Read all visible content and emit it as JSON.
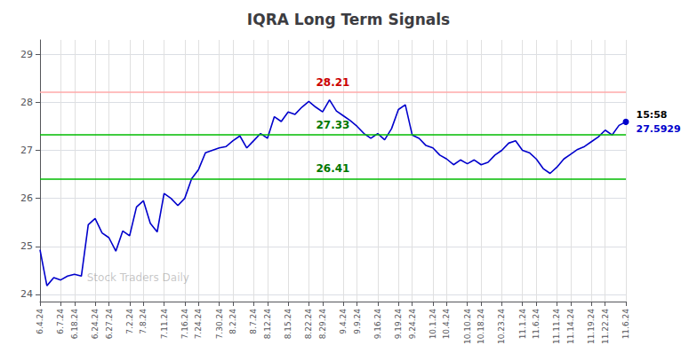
{
  "chart_data": {
    "type": "line",
    "title": "IQRA Long Term Signals",
    "categories": [
      "6.4.24",
      null,
      null,
      "6.7.24",
      null,
      "6.18.24",
      null,
      null,
      "6.24.24",
      null,
      "6.27.24",
      null,
      null,
      "7.2.24",
      null,
      "7.8.24",
      null,
      null,
      "7.11.24",
      null,
      null,
      "7.16.24",
      null,
      "7.24.24",
      null,
      null,
      "7.30.24",
      null,
      "8.2.24",
      null,
      null,
      "8.7.24",
      null,
      "8.12.24",
      null,
      null,
      "8.15.24",
      null,
      null,
      "8.22.24",
      null,
      "8.29.24",
      null,
      null,
      "9.4.24",
      null,
      "9.9.24",
      null,
      null,
      "9.16.24",
      null,
      null,
      "9.19.24",
      null,
      "9.24.24",
      null,
      null,
      "10.1.24",
      null,
      "10.4.24",
      null,
      null,
      "10.10.24",
      null,
      "10.18.24",
      null,
      null,
      "10.23.24",
      null,
      null,
      "11.1.24",
      null,
      "11.6.24",
      null,
      null,
      "11.11.24",
      null,
      "11.14.24",
      null,
      null,
      "11.19.24",
      null,
      "11.22.24",
      null,
      null,
      "11.6.24"
    ],
    "values": [
      24.93,
      24.18,
      24.35,
      24.3,
      24.38,
      24.42,
      24.38,
      25.45,
      25.58,
      25.28,
      25.18,
      24.9,
      25.32,
      25.22,
      25.82,
      25.95,
      25.48,
      25.3,
      26.1,
      26.0,
      25.85,
      26.0,
      26.41,
      26.6,
      26.95,
      27.0,
      27.05,
      27.08,
      27.2,
      27.3,
      27.05,
      27.2,
      27.35,
      27.25,
      27.7,
      27.6,
      27.8,
      27.75,
      27.9,
      28.02,
      27.9,
      27.8,
      28.05,
      27.82,
      27.72,
      27.62,
      27.5,
      27.35,
      27.25,
      27.35,
      27.22,
      27.45,
      27.85,
      27.95,
      27.32,
      27.25,
      27.1,
      27.05,
      26.9,
      26.82,
      26.7,
      26.8,
      26.72,
      26.8,
      26.7,
      26.75,
      26.9,
      27.0,
      27.15,
      27.2,
      27.0,
      26.95,
      26.82,
      26.62,
      26.52,
      26.65,
      26.82,
      26.92,
      27.02,
      27.08,
      27.18,
      27.28,
      27.42,
      27.32,
      27.52,
      27.5929
    ],
    "color": "#0000cc",
    "ylim": [
      23.85,
      29.3
    ],
    "yticks": [
      24,
      25,
      26,
      27,
      28,
      29
    ],
    "grid": true,
    "annotations": [
      {
        "text": "28.21",
        "y": 28.21,
        "color": "#cc0000",
        "line_color": "#ffaaaa"
      },
      {
        "text": "27.33",
        "y": 27.33,
        "color": "#007700",
        "line_color": "#00bb00"
      },
      {
        "text": "26.41",
        "y": 26.41,
        "color": "#007700",
        "line_color": "#00bb00"
      },
      {
        "text": "15:58",
        "point": 85,
        "color": "#000000"
      },
      {
        "text": "27.5929",
        "point": 85,
        "color": "#0000cc"
      },
      {
        "text": "Stock Traders Daily",
        "color": "#808080"
      }
    ]
  }
}
